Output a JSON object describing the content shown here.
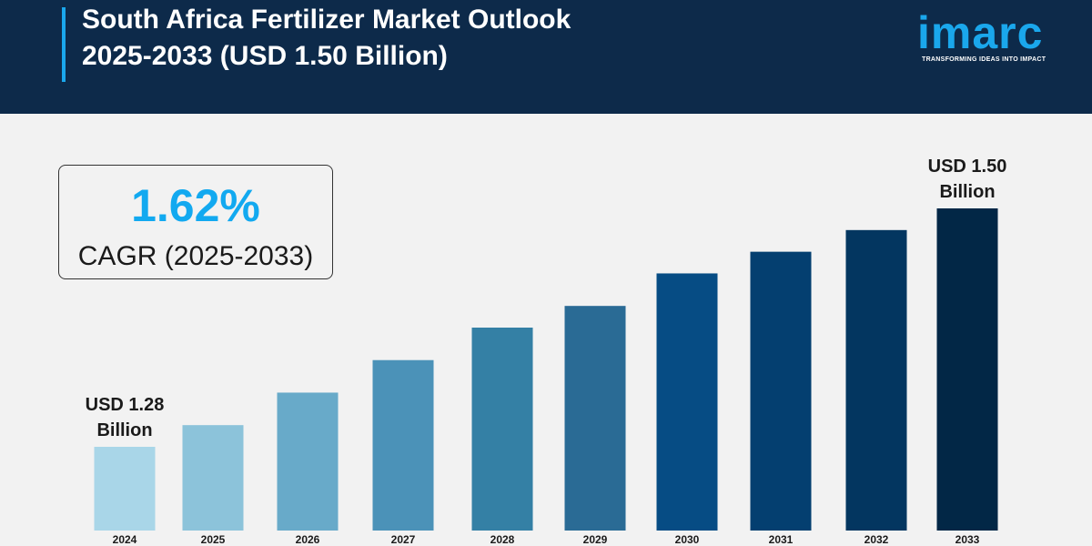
{
  "header": {
    "title_line1": "South Africa Fertilizer Market Outlook",
    "title_line2": "2025-2033 (USD 1.50 Billion)"
  },
  "logo": {
    "wordmark": "imarc",
    "tagline": "TRANSFORMING IDEAS INTO IMPACT"
  },
  "cagr": {
    "value": "1.62%",
    "label": "CAGR (2025-2033)"
  },
  "chart_data": {
    "type": "bar",
    "categories": [
      "2024",
      "2025",
      "2026",
      "2027",
      "2028",
      "2029",
      "2030",
      "2031",
      "2032",
      "2033"
    ],
    "values": [
      1.28,
      1.3,
      1.33,
      1.36,
      1.39,
      1.41,
      1.44,
      1.46,
      1.48,
      1.5
    ],
    "unit": "USD Billion",
    "annotations": [
      {
        "category": "2024",
        "lines": [
          "USD 1.28",
          "Billion"
        ]
      },
      {
        "category": "2033",
        "lines": [
          "USD 1.50",
          "Billion"
        ]
      }
    ],
    "bar_colors": [
      "#a9d6e8",
      "#8cc3da",
      "#68aac9",
      "#4b92b8",
      "#3480a5",
      "#2a6b95",
      "#064c84",
      "#043f70",
      "#033660",
      "#022746"
    ],
    "grid": false,
    "legend": "none"
  }
}
